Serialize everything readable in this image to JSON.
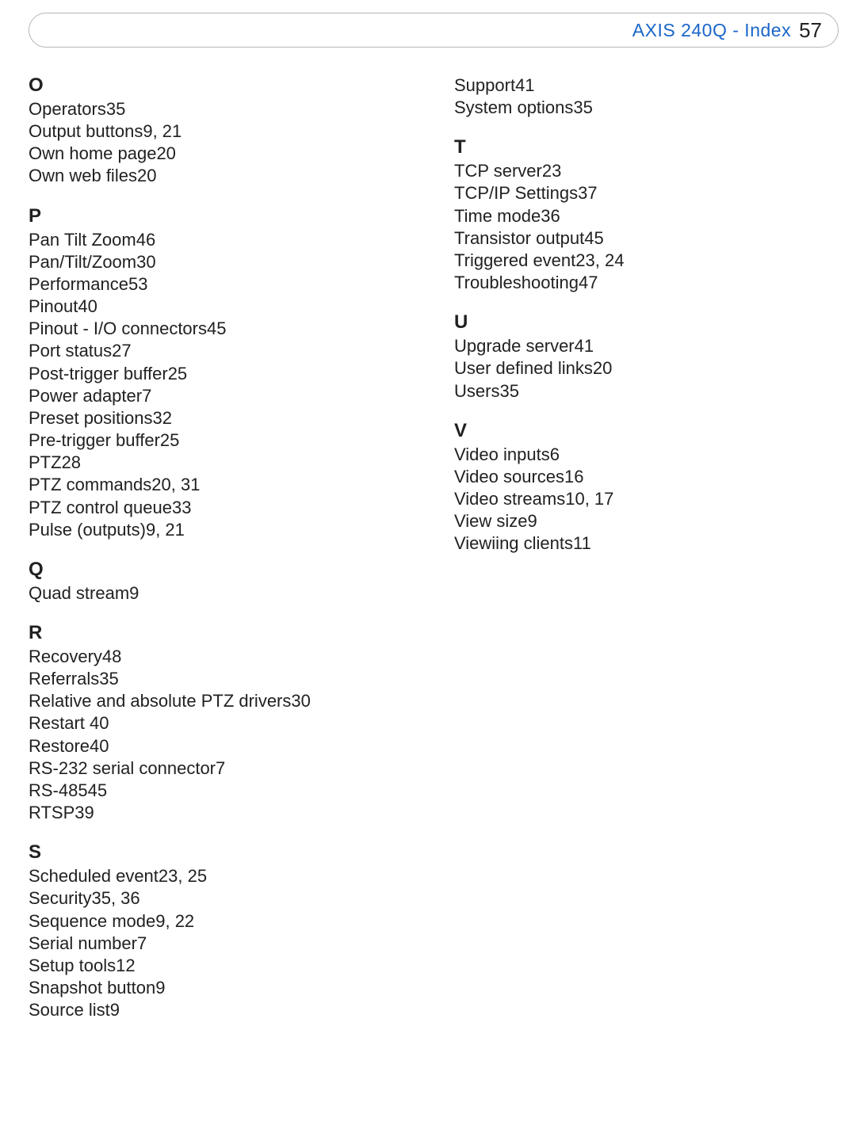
{
  "header": {
    "title": "AXIS 240Q - Index",
    "page_number": "57",
    "title_color": "#1a66c9",
    "text_color": "#212121",
    "border_color": "#b5b5b5"
  },
  "columns": [
    [
      {
        "letter": "O",
        "entries": [
          {
            "term": "Operators",
            "pages": "35"
          },
          {
            "term": "Output buttons",
            "pages": "9, 21"
          },
          {
            "term": "Own home page",
            "pages": "20"
          },
          {
            "term": "Own web files",
            "pages": "20"
          }
        ]
      },
      {
        "letter": "P",
        "entries": [
          {
            "term": "Pan Tilt Zoom",
            "pages": "46"
          },
          {
            "term": "Pan/Tilt/Zoom",
            "pages": "30"
          },
          {
            "term": "Performance",
            "pages": "53"
          },
          {
            "term": "Pinout",
            "pages": "40"
          },
          {
            "term": "Pinout - I/O connectors",
            "pages": "45"
          },
          {
            "term": "Port status",
            "pages": "27"
          },
          {
            "term": "Post-trigger buffer",
            "pages": "25"
          },
          {
            "term": "Power adapter",
            "pages": "7"
          },
          {
            "term": "Preset positions",
            "pages": "32"
          },
          {
            "term": "Pre-trigger buffer",
            "pages": "25"
          },
          {
            "term": "PTZ",
            "pages": "28"
          },
          {
            "term": "PTZ commands",
            "pages": "20, 31"
          },
          {
            "term": "PTZ control queue",
            "pages": "33"
          },
          {
            "term": "Pulse (outputs)",
            "pages": "9, 21"
          }
        ]
      },
      {
        "letter": "Q",
        "entries": [
          {
            "term": "Quad stream",
            "pages": "9"
          }
        ]
      },
      {
        "letter": "R",
        "entries": [
          {
            "term": "Recovery",
            "pages": "48"
          },
          {
            "term": "Referrals",
            "pages": "35"
          },
          {
            "term": "Relative and absolute PTZ drivers",
            "pages": "30"
          },
          {
            "term": "Restart",
            "pages": " 40"
          },
          {
            "term": "Restore",
            "pages": "40"
          },
          {
            "term": "RS-232 serial connector",
            "pages": "7"
          },
          {
            "term": "RS-485",
            "pages": "45"
          },
          {
            "term": "RTSP",
            "pages": "39"
          }
        ]
      },
      {
        "letter": "S",
        "entries": [
          {
            "term": "Scheduled event",
            "pages": "23, 25"
          },
          {
            "term": "Security",
            "pages": "35, 36"
          },
          {
            "term": "Sequence mode",
            "pages": "9, 22"
          },
          {
            "term": "Serial number",
            "pages": "7"
          },
          {
            "term": "Setup tools",
            "pages": "12"
          },
          {
            "term": "Snapshot button",
            "pages": "9"
          },
          {
            "term": "Source list",
            "pages": "9"
          }
        ]
      }
    ],
    [
      {
        "letter": null,
        "entries": [
          {
            "term": "Support",
            "pages": "41"
          },
          {
            "term": "System options",
            "pages": "35"
          }
        ]
      },
      {
        "letter": "T",
        "entries": [
          {
            "term": "TCP server",
            "pages": "23"
          },
          {
            "term": "TCP/IP Settings",
            "pages": "37"
          },
          {
            "term": "Time mode",
            "pages": "36"
          },
          {
            "term": "Transistor output",
            "pages": "45"
          },
          {
            "term": "Triggered event",
            "pages": "23, 24"
          },
          {
            "term": "Troubleshooting",
            "pages": "47"
          }
        ]
      },
      {
        "letter": "U",
        "entries": [
          {
            "term": "Upgrade server",
            "pages": "41"
          },
          {
            "term": "User defined links",
            "pages": "20"
          },
          {
            "term": "Users",
            "pages": "35"
          }
        ]
      },
      {
        "letter": "V",
        "entries": [
          {
            "term": "Video inputs",
            "pages": "6"
          },
          {
            "term": "Video sources",
            "pages": "16"
          },
          {
            "term": "Video streams",
            "pages": "10, 17"
          },
          {
            "term": "View size",
            "pages": "9"
          },
          {
            "term": "Viewiing clients",
            "pages": "11"
          }
        ]
      }
    ]
  ]
}
